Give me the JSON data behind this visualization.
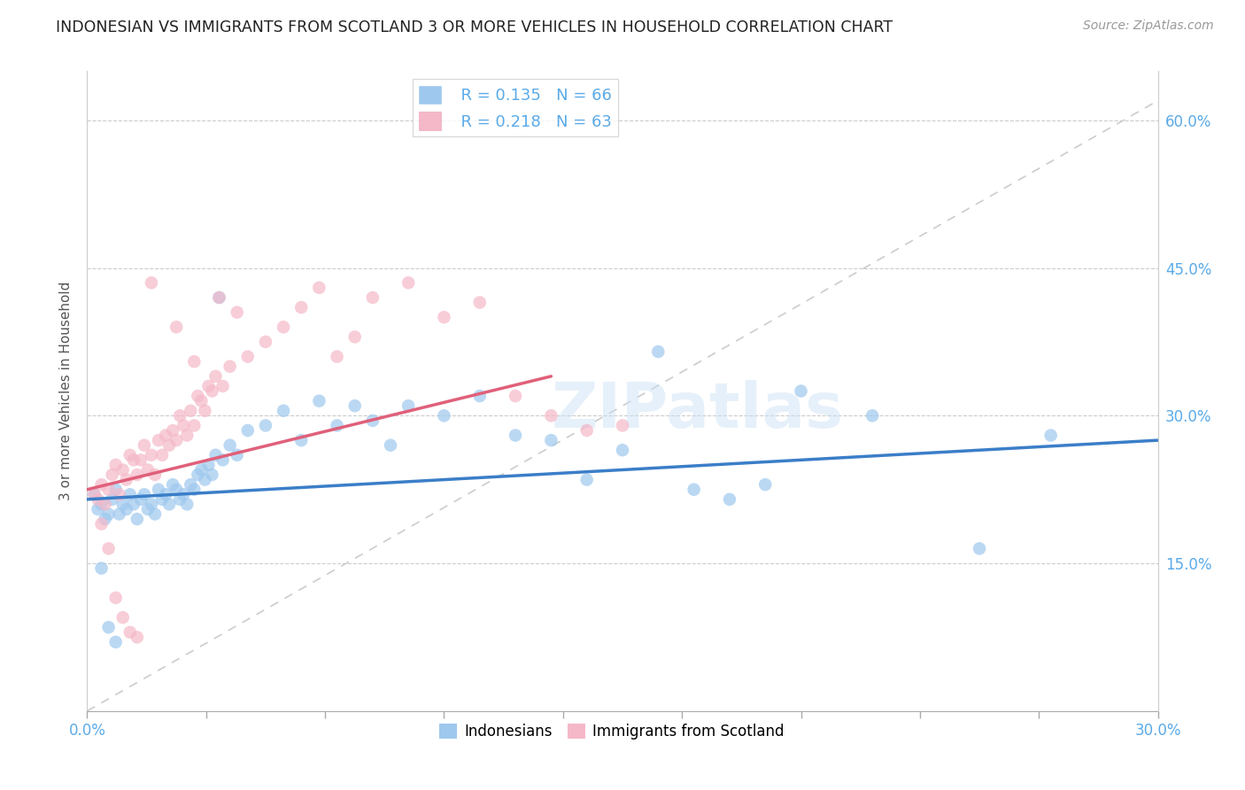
{
  "title": "INDONESIAN VS IMMIGRANTS FROM SCOTLAND 3 OR MORE VEHICLES IN HOUSEHOLD CORRELATION CHART",
  "source": "Source: ZipAtlas.com",
  "ylabel": "3 or more Vehicles in Household",
  "xlim": [
    0.0,
    30.0
  ],
  "ylim": [
    0.0,
    65.0
  ],
  "yticks": [
    15.0,
    30.0,
    45.0,
    60.0
  ],
  "xtick_count": 9,
  "legend_r1": "R = 0.135",
  "legend_n1": "N = 66",
  "legend_r2": "R = 0.218",
  "legend_n2": "N = 63",
  "blue_color": "#9EC8EE",
  "pink_color": "#F5B8C8",
  "blue_line_color": "#3B7EC8",
  "pink_line_color": "#E0607A",
  "diagonal_color": "#CCCCCC",
  "label_color": "#5aaae8",
  "watermark_text": "ZIPatlas",
  "indonesian_x": [
    0.2,
    0.3,
    0.4,
    0.5,
    0.6,
    0.7,
    0.8,
    0.9,
    1.0,
    1.1,
    1.2,
    1.3,
    1.4,
    1.5,
    1.6,
    1.7,
    1.8,
    1.9,
    2.0,
    2.1,
    2.2,
    2.3,
    2.4,
    2.5,
    2.6,
    2.7,
    2.8,
    2.9,
    3.0,
    3.1,
    3.2,
    3.3,
    3.4,
    3.5,
    3.6,
    3.8,
    4.0,
    4.2,
    4.5,
    5.0,
    5.5,
    6.0,
    6.5,
    7.0,
    7.5,
    8.0,
    8.5,
    9.0,
    10.0,
    11.0,
    12.0,
    13.0,
    14.0,
    15.0,
    16.0,
    17.0,
    18.0,
    19.0,
    20.0,
    22.0,
    25.0,
    27.0,
    0.4,
    0.6,
    0.8,
    3.7
  ],
  "indonesian_y": [
    22.0,
    20.5,
    21.0,
    19.5,
    20.0,
    21.5,
    22.5,
    20.0,
    21.0,
    20.5,
    22.0,
    21.0,
    19.5,
    21.5,
    22.0,
    20.5,
    21.0,
    20.0,
    22.5,
    21.5,
    22.0,
    21.0,
    23.0,
    22.5,
    21.5,
    22.0,
    21.0,
    23.0,
    22.5,
    24.0,
    24.5,
    23.5,
    25.0,
    24.0,
    26.0,
    25.5,
    27.0,
    26.0,
    28.5,
    29.0,
    30.5,
    27.5,
    31.5,
    29.0,
    31.0,
    29.5,
    27.0,
    31.0,
    30.0,
    32.0,
    28.0,
    27.5,
    23.5,
    26.5,
    36.5,
    22.5,
    21.5,
    23.0,
    32.5,
    30.0,
    16.5,
    28.0,
    14.5,
    8.5,
    7.0,
    42.0
  ],
  "scotland_x": [
    0.2,
    0.3,
    0.4,
    0.5,
    0.6,
    0.7,
    0.8,
    0.9,
    1.0,
    1.1,
    1.2,
    1.3,
    1.4,
    1.5,
    1.6,
    1.7,
    1.8,
    1.9,
    2.0,
    2.1,
    2.2,
    2.3,
    2.4,
    2.5,
    2.6,
    2.7,
    2.8,
    2.9,
    3.0,
    3.1,
    3.2,
    3.3,
    3.4,
    3.5,
    3.6,
    3.8,
    4.0,
    4.5,
    5.0,
    5.5,
    6.0,
    6.5,
    7.0,
    7.5,
    8.0,
    9.0,
    10.0,
    11.0,
    12.0,
    13.0,
    14.0,
    15.0,
    0.4,
    0.6,
    0.8,
    1.0,
    1.2,
    1.4,
    1.8,
    2.5,
    3.0,
    3.7,
    4.2
  ],
  "scotland_y": [
    22.0,
    21.5,
    23.0,
    21.0,
    22.5,
    24.0,
    25.0,
    22.0,
    24.5,
    23.5,
    26.0,
    25.5,
    24.0,
    25.5,
    27.0,
    24.5,
    26.0,
    24.0,
    27.5,
    26.0,
    28.0,
    27.0,
    28.5,
    27.5,
    30.0,
    29.0,
    28.0,
    30.5,
    29.0,
    32.0,
    31.5,
    30.5,
    33.0,
    32.5,
    34.0,
    33.0,
    35.0,
    36.0,
    37.5,
    39.0,
    41.0,
    43.0,
    36.0,
    38.0,
    42.0,
    43.5,
    40.0,
    41.5,
    32.0,
    30.0,
    28.5,
    29.0,
    19.0,
    16.5,
    11.5,
    9.5,
    8.0,
    7.5,
    43.5,
    39.0,
    35.5,
    42.0,
    40.5
  ],
  "blue_reg_x0": 0.0,
  "blue_reg_y0": 21.5,
  "blue_reg_x1": 30.0,
  "blue_reg_y1": 27.5,
  "pink_reg_x0": 0.0,
  "pink_reg_y0": 22.5,
  "pink_reg_x1": 13.0,
  "pink_reg_y1": 34.0
}
